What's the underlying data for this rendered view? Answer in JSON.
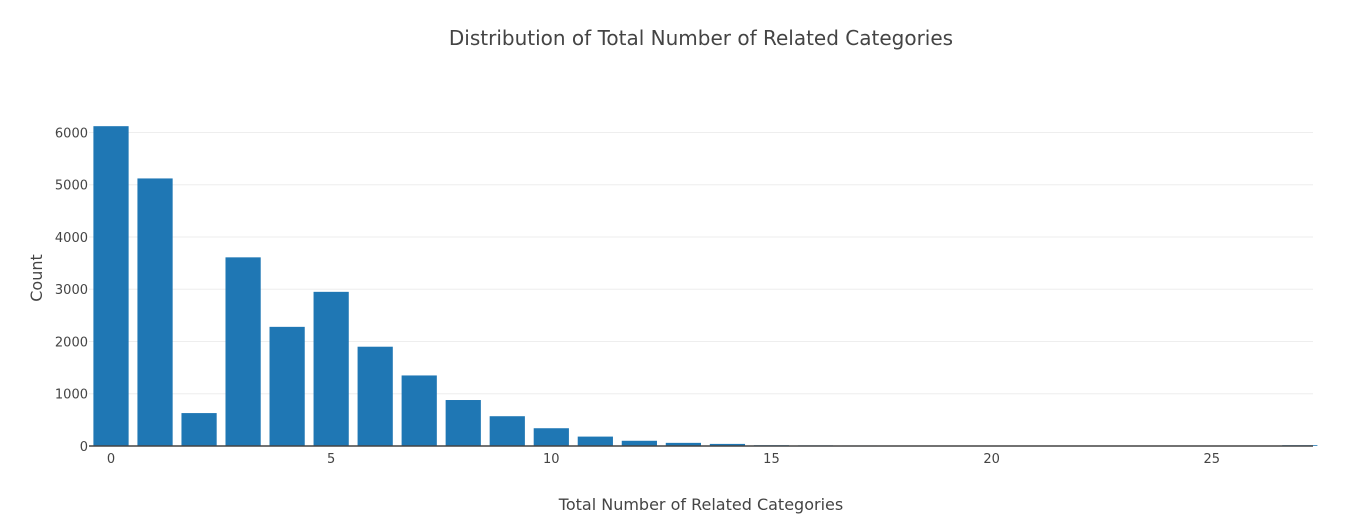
{
  "chart_data": {
    "type": "bar",
    "title": "Distribution of Total Number of Related Categories",
    "xlabel": "Total Number of Related Categories",
    "ylabel": "Count",
    "xlim": [
      -0.5,
      27.3
    ],
    "ylim": [
      0,
      6200
    ],
    "x_ticks": [
      0,
      5,
      10,
      15,
      20,
      25
    ],
    "y_ticks": [
      0,
      1000,
      2000,
      3000,
      4000,
      5000,
      6000
    ],
    "grid": true,
    "legend": "none",
    "color": "#1f77b4",
    "x": [
      0,
      1,
      2,
      3,
      4,
      5,
      6,
      7,
      8,
      9,
      10,
      11,
      12,
      13,
      14,
      15,
      16,
      17,
      18,
      19,
      20,
      21,
      22,
      23,
      24,
      25,
      26,
      27
    ],
    "values": [
      6120,
      5120,
      630,
      3610,
      2280,
      2950,
      1900,
      1350,
      880,
      570,
      340,
      180,
      100,
      60,
      40,
      15,
      12,
      10,
      8,
      7,
      6,
      5,
      4,
      3,
      6,
      3,
      2,
      15
    ]
  }
}
